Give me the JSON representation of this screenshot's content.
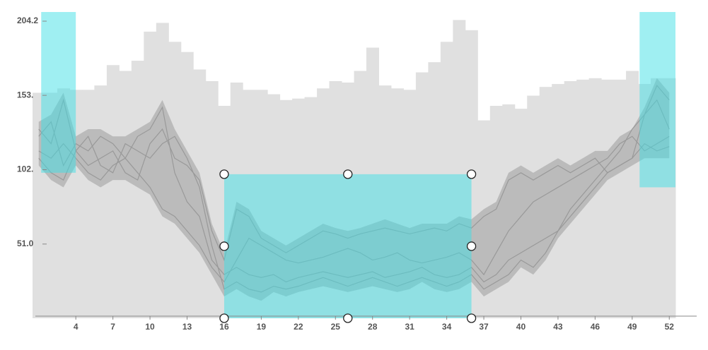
{
  "chart_data": {
    "type": "weekly-envelope",
    "xlim": [
      0.5,
      52.5
    ],
    "ylim": [
      0,
      210.5
    ],
    "xticks": [
      4,
      7,
      10,
      13,
      16,
      19,
      22,
      25,
      28,
      31,
      34,
      37,
      40,
      43,
      46,
      49,
      52
    ],
    "yticks": [
      {
        "value": 204.2,
        "label": "204.2"
      },
      {
        "value": 153.2,
        "label": "153."
      },
      {
        "value": 102.1,
        "label": "102."
      },
      {
        "value": 51.0,
        "label": "51.0"
      }
    ],
    "max_color": "#e0e0e0",
    "max_values": [
      155,
      155,
      158,
      157,
      157,
      160,
      174,
      170,
      177,
      197,
      203,
      190,
      183,
      171,
      163,
      146,
      162,
      157,
      157,
      154,
      150,
      151,
      152,
      158,
      163,
      162,
      170,
      186,
      160,
      158,
      157,
      169,
      176,
      190,
      205,
      198,
      136,
      146,
      147,
      144,
      153,
      159,
      161,
      163,
      164,
      165,
      164,
      164,
      170,
      161,
      165,
      165
    ],
    "band_color": "#b4b4b4",
    "band": {
      "low": [
        105,
        95,
        90,
        105,
        95,
        90,
        95,
        95,
        90,
        85,
        70,
        65,
        55,
        45,
        30,
        15,
        20,
        15,
        12,
        18,
        15,
        18,
        20,
        22,
        20,
        18,
        20,
        22,
        20,
        18,
        20,
        25,
        20,
        18,
        20,
        25,
        15,
        20,
        25,
        35,
        30,
        40,
        55,
        65,
        75,
        85,
        95,
        100,
        105,
        110,
        110,
        110
      ],
      "high": [
        135,
        140,
        155,
        125,
        130,
        130,
        125,
        125,
        130,
        135,
        150,
        130,
        115,
        100,
        65,
        45,
        80,
        75,
        60,
        55,
        50,
        55,
        60,
        65,
        62,
        60,
        62,
        65,
        68,
        65,
        62,
        65,
        65,
        65,
        70,
        68,
        75,
        80,
        100,
        105,
        100,
        105,
        110,
        105,
        110,
        115,
        115,
        125,
        130,
        145,
        165,
        155
      ]
    },
    "line_color": "#999999",
    "lines": [
      [
        130,
        120,
        150,
        115,
        105,
        110,
        115,
        100,
        95,
        120,
        130,
        110,
        105,
        95,
        60,
        40,
        75,
        70,
        55,
        50,
        45,
        50,
        55,
        60,
        58,
        55,
        58,
        60,
        62,
        60,
        58,
        60,
        62,
        60,
        65,
        62,
        70,
        75,
        95,
        100,
        95,
        100,
        105,
        100,
        105,
        110,
        100,
        105,
        110,
        140,
        160,
        150
      ],
      [
        115,
        110,
        120,
        110,
        100,
        95,
        105,
        110,
        100,
        90,
        75,
        70,
        60,
        50,
        35,
        25,
        40,
        55,
        50,
        45,
        40,
        38,
        40,
        42,
        45,
        48,
        45,
        40,
        42,
        45,
        40,
        38,
        40,
        42,
        45,
        40,
        30,
        45,
        60,
        70,
        80,
        85,
        90,
        95,
        100,
        105,
        110,
        120,
        125,
        115,
        120,
        125
      ],
      [
        125,
        135,
        105,
        120,
        115,
        125,
        120,
        110,
        125,
        130,
        145,
        100,
        80,
        70,
        40,
        30,
        35,
        30,
        28,
        30,
        25,
        28,
        30,
        32,
        30,
        28,
        30,
        32,
        28,
        30,
        32,
        35,
        30,
        28,
        30,
        35,
        25,
        30,
        40,
        45,
        50,
        55,
        60,
        70,
        80,
        90,
        100,
        105,
        110,
        120,
        115,
        118
      ],
      [
        110,
        100,
        95,
        115,
        125,
        105,
        100,
        120,
        115,
        110,
        120,
        125,
        110,
        90,
        50,
        20,
        25,
        20,
        18,
        22,
        20,
        22,
        25,
        28,
        25,
        22,
        25,
        28,
        25,
        22,
        25,
        28,
        25,
        22,
        25,
        30,
        20,
        25,
        30,
        40,
        35,
        45,
        60,
        75,
        85,
        95,
        105,
        115,
        130,
        140,
        150,
        130
      ]
    ],
    "selection_color": "#3fe0e6",
    "selections": [
      {
        "x": [
          1.2,
          4
        ],
        "y": [
          100,
          210.5
        ]
      },
      {
        "x": [
          16,
          36
        ],
        "y": [
          0,
          99
        ]
      },
      {
        "x": [
          49.6,
          52.5
        ],
        "y": [
          90,
          210.5
        ]
      }
    ]
  }
}
